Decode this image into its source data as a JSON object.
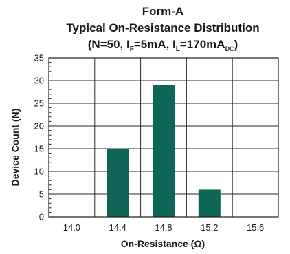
{
  "chart_data": {
    "type": "bar",
    "title": "Form-A",
    "subtitle_line1": "Typical On-Resistance Distribution",
    "subtitle_line2": {
      "prefix": "(N=50, I",
      "sub1": "F",
      "mid": "=5mA, I",
      "sub2": "L",
      "mid2": "=170mA",
      "sub3": "DC",
      "suffix": ")"
    },
    "xlabel": "On-Resistance (Ω)",
    "ylabel": "Device Count (N)",
    "x_ticks": [
      "14.0",
      "14.4",
      "14.8",
      "15.2",
      "15.6"
    ],
    "y_ticks": [
      "0",
      "5",
      "10",
      "15",
      "20",
      "25",
      "30",
      "35"
    ],
    "ylim": [
      0,
      35
    ],
    "categories": [
      "14.4",
      "14.8",
      "15.2"
    ],
    "values": [
      15,
      29,
      6
    ],
    "bar_color": "#0e6657",
    "grid": true,
    "minor_ticks_per_major": 5
  }
}
